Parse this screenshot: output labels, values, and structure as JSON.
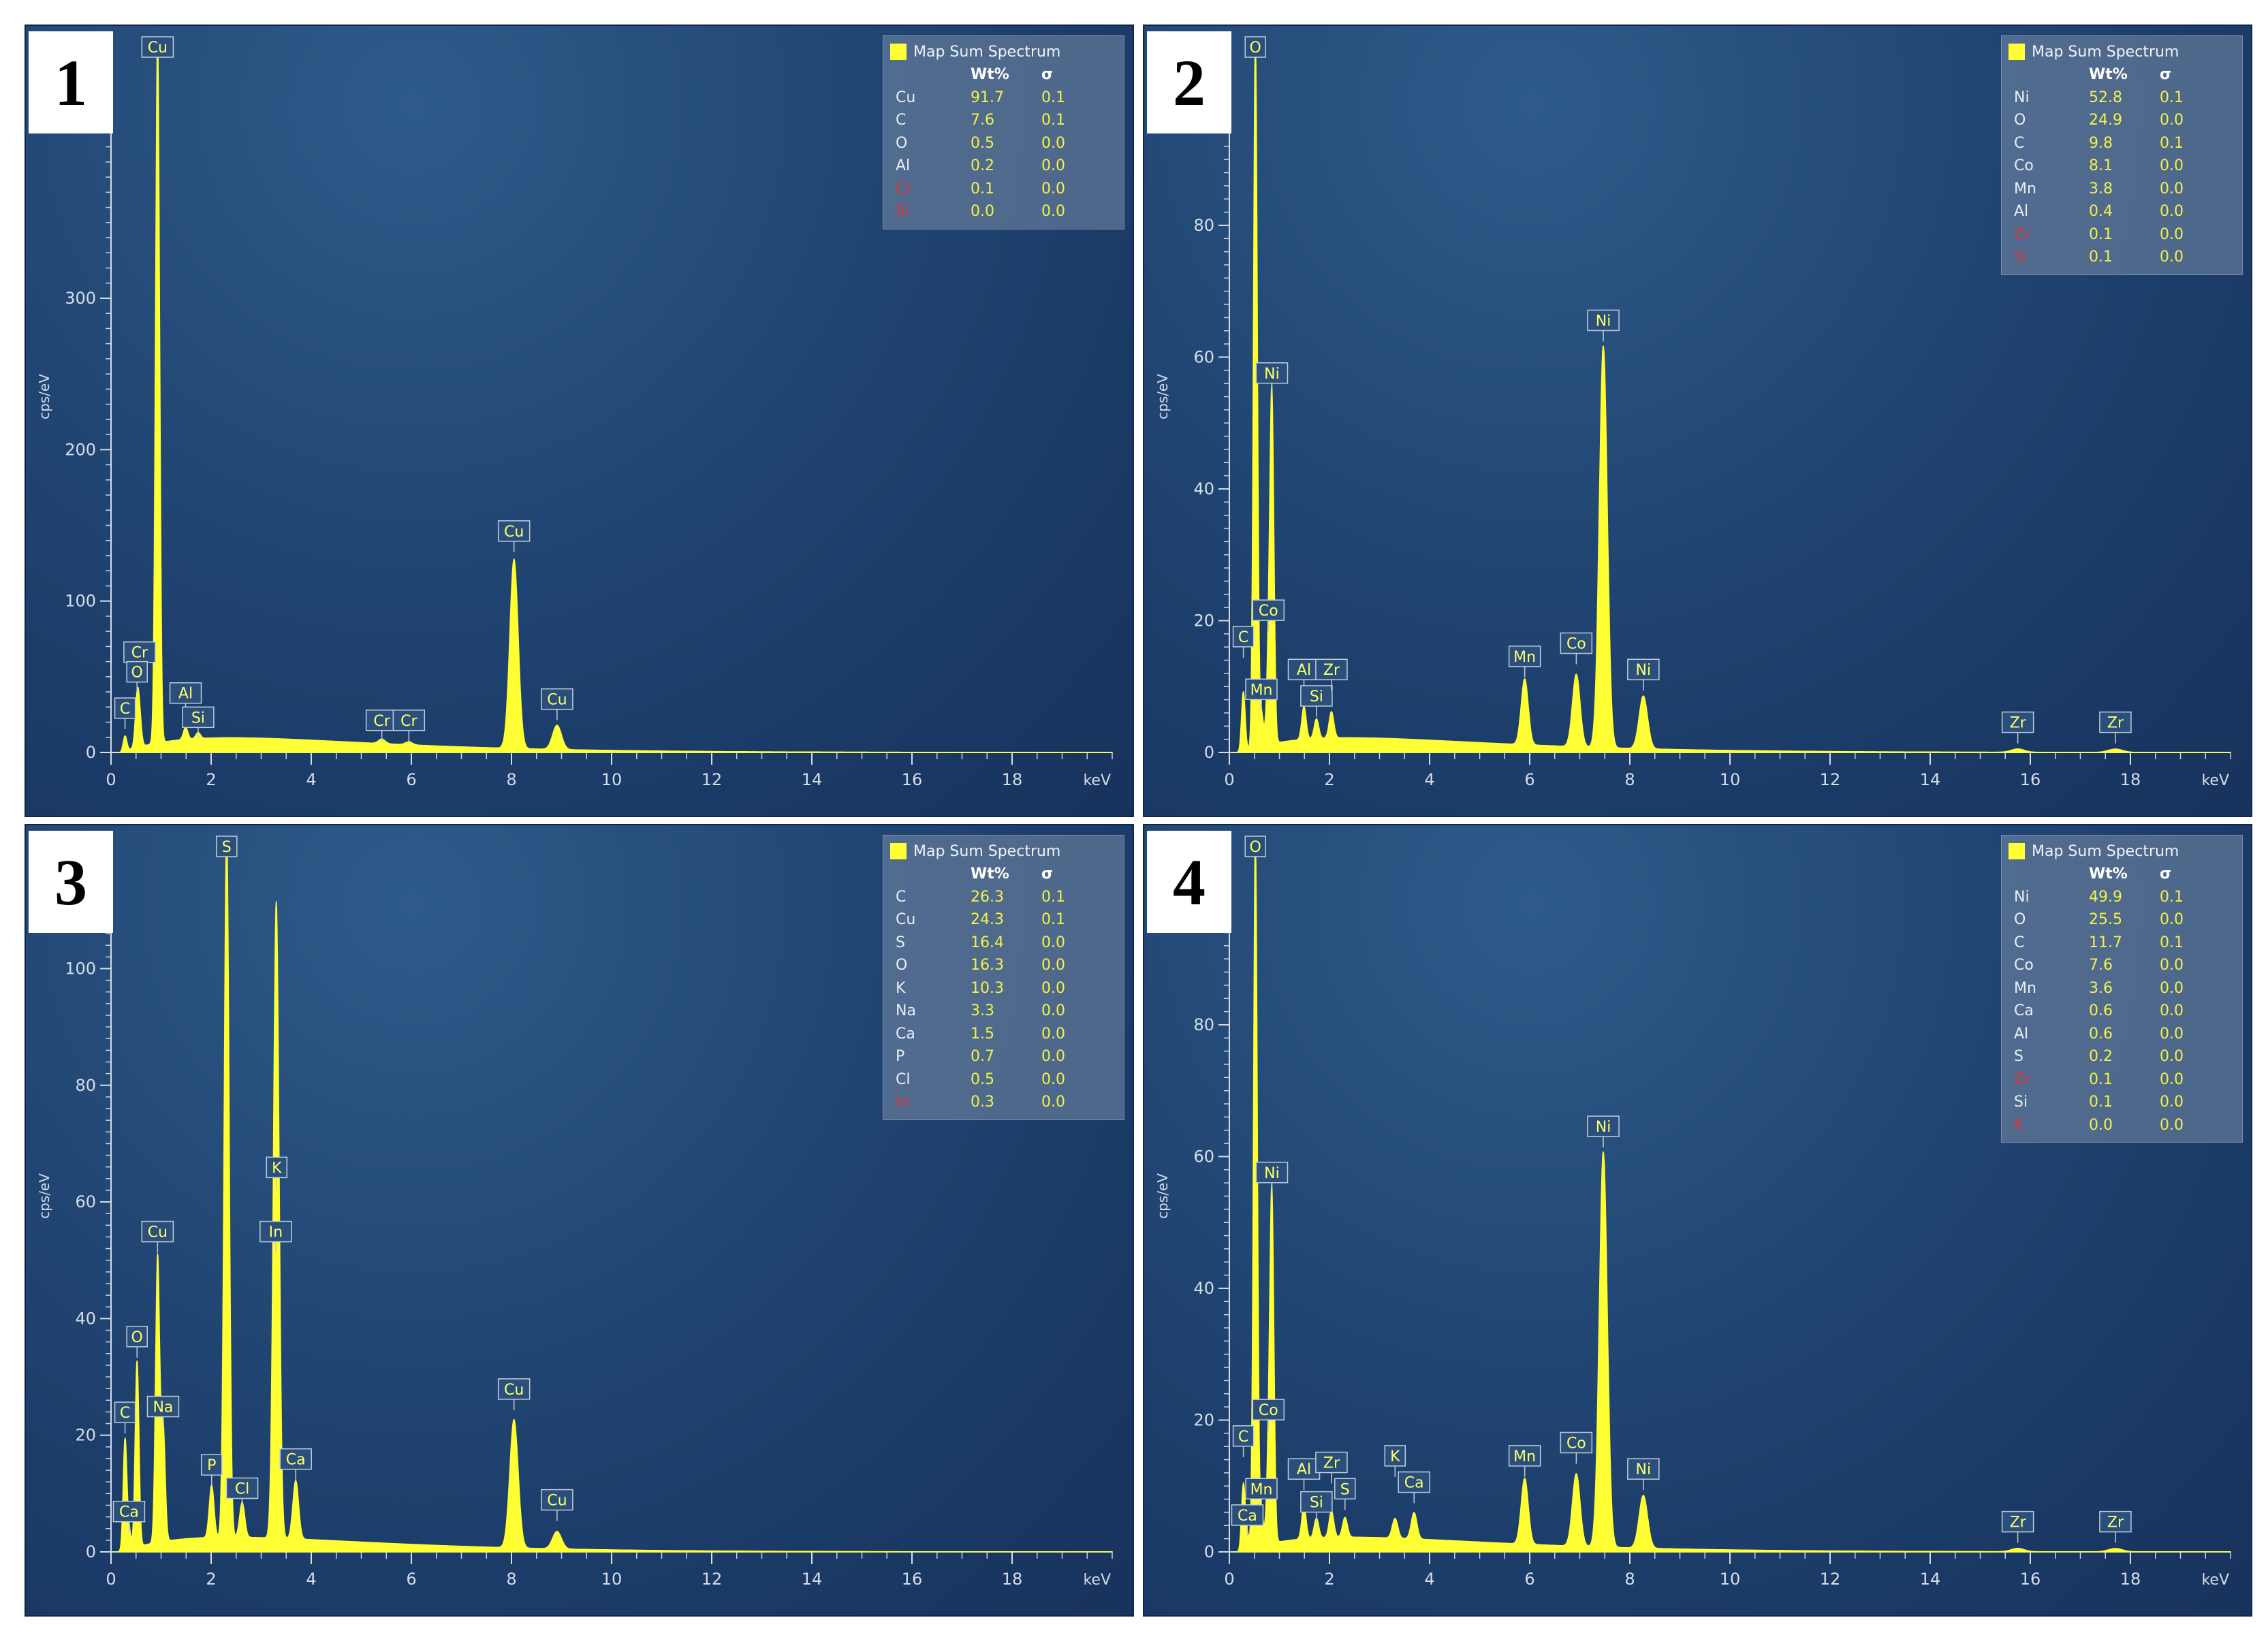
{
  "chart_data": [
    {
      "type": "area",
      "panel_label": "1",
      "xlabel": "keV",
      "ylabel": "cps/eV",
      "xlim": [
        0,
        20
      ],
      "ylim": [
        0,
        470
      ],
      "x_ticks": [
        0,
        2,
        4,
        6,
        8,
        10,
        12,
        14,
        16,
        18
      ],
      "y_ticks": [
        0,
        100,
        200,
        300
      ],
      "peaks": [
        {
          "x": 0.28,
          "y": 10
        },
        {
          "x": 0.52,
          "y": 30
        },
        {
          "x": 0.57,
          "y": 18
        },
        {
          "x": 0.93,
          "y": 470
        },
        {
          "x": 1.49,
          "y": 8
        },
        {
          "x": 1.74,
          "y": 4
        },
        {
          "x": 5.41,
          "y": 3
        },
        {
          "x": 5.95,
          "y": 2
        },
        {
          "x": 8.05,
          "y": 125
        },
        {
          "x": 8.91,
          "y": 16
        }
      ],
      "peak_labels": [
        {
          "x": 0.93,
          "y": 470,
          "text": "Cu"
        },
        {
          "x": 0.57,
          "y": 55,
          "text": "Cr"
        },
        {
          "x": 0.52,
          "y": 42,
          "text": "O"
        },
        {
          "x": 0.28,
          "y": 18,
          "text": "C"
        },
        {
          "x": 1.49,
          "y": 28,
          "text": "Al"
        },
        {
          "x": 1.74,
          "y": 12,
          "text": "Si"
        },
        {
          "x": 5.41,
          "y": 10,
          "text": "Cr"
        },
        {
          "x": 5.95,
          "y": 10,
          "text": "Cr"
        },
        {
          "x": 8.05,
          "y": 135,
          "text": "Cu"
        },
        {
          "x": 8.91,
          "y": 24,
          "text": "Cu"
        }
      ],
      "legend": {
        "title": "Map Sum Spectrum",
        "col_wt": "Wt%",
        "col_sigma": "σ",
        "rows": [
          {
            "element": "Cu",
            "wt": "91.7",
            "sigma": "0.1",
            "flag": false
          },
          {
            "element": "C",
            "wt": "7.6",
            "sigma": "0.1",
            "flag": false
          },
          {
            "element": "O",
            "wt": "0.5",
            "sigma": "0.0",
            "flag": false
          },
          {
            "element": "Al",
            "wt": "0.2",
            "sigma": "0.0",
            "flag": false
          },
          {
            "element": "Cr",
            "wt": "0.1",
            "sigma": "0.0",
            "flag": true
          },
          {
            "element": "Si",
            "wt": "0.0",
            "sigma": "0.0",
            "flag": true
          }
        ]
      }
    },
    {
      "type": "area",
      "panel_label": "2",
      "xlabel": "keV",
      "ylabel": "cps/eV",
      "xlim": [
        0,
        20
      ],
      "ylim": [
        0,
        108
      ],
      "x_ticks": [
        0,
        2,
        4,
        6,
        8,
        10,
        12,
        14,
        16,
        18
      ],
      "y_ticks": [
        0,
        20,
        40,
        60,
        80
      ],
      "peaks": [
        {
          "x": 0.28,
          "y": 9
        },
        {
          "x": 0.52,
          "y": 108
        },
        {
          "x": 0.64,
          "y": 5
        },
        {
          "x": 0.78,
          "y": 11
        },
        {
          "x": 0.85,
          "y": 52
        },
        {
          "x": 1.49,
          "y": 5
        },
        {
          "x": 1.74,
          "y": 3
        },
        {
          "x": 2.04,
          "y": 4
        },
        {
          "x": 5.9,
          "y": 10
        },
        {
          "x": 6.93,
          "y": 11
        },
        {
          "x": 7.47,
          "y": 61
        },
        {
          "x": 8.27,
          "y": 8
        },
        {
          "x": 15.75,
          "y": 0.5
        },
        {
          "x": 17.7,
          "y": 0.5
        }
      ],
      "peak_labels": [
        {
          "x": 0.52,
          "y": 108,
          "text": "O"
        },
        {
          "x": 0.85,
          "y": 55,
          "text": "Ni"
        },
        {
          "x": 0.78,
          "y": 19,
          "text": "Co"
        },
        {
          "x": 0.28,
          "y": 15,
          "text": "C"
        },
        {
          "x": 0.64,
          "y": 7,
          "text": "Mn"
        },
        {
          "x": 1.49,
          "y": 10,
          "text": "Al"
        },
        {
          "x": 1.74,
          "y": 6,
          "text": "Si"
        },
        {
          "x": 2.04,
          "y": 10,
          "text": "Zr"
        },
        {
          "x": 5.9,
          "y": 12,
          "text": "Mn"
        },
        {
          "x": 6.93,
          "y": 14,
          "text": "Co"
        },
        {
          "x": 7.47,
          "y": 63,
          "text": "Ni"
        },
        {
          "x": 8.27,
          "y": 10,
          "text": "Ni"
        },
        {
          "x": 15.75,
          "y": 2,
          "text": "Zr"
        },
        {
          "x": 17.7,
          "y": 2,
          "text": "Zr"
        }
      ],
      "legend": {
        "title": "Map Sum Spectrum",
        "col_wt": "Wt%",
        "col_sigma": "σ",
        "rows": [
          {
            "element": "Ni",
            "wt": "52.8",
            "sigma": "0.1",
            "flag": false
          },
          {
            "element": "O",
            "wt": "24.9",
            "sigma": "0.0",
            "flag": false
          },
          {
            "element": "C",
            "wt": "9.8",
            "sigma": "0.1",
            "flag": false
          },
          {
            "element": "Co",
            "wt": "8.1",
            "sigma": "0.0",
            "flag": false
          },
          {
            "element": "Mn",
            "wt": "3.8",
            "sigma": "0.0",
            "flag": false
          },
          {
            "element": "Al",
            "wt": "0.4",
            "sigma": "0.0",
            "flag": false
          },
          {
            "element": "Zr",
            "wt": "0.1",
            "sigma": "0.0",
            "flag": true
          },
          {
            "element": "Si",
            "wt": "0.1",
            "sigma": "0.0",
            "flag": true
          }
        ]
      }
    },
    {
      "type": "area",
      "panel_label": "3",
      "xlabel": "keV",
      "ylabel": "cps/eV",
      "xlim": [
        0,
        20
      ],
      "ylim": [
        0,
        122
      ],
      "x_ticks": [
        0,
        2,
        4,
        6,
        8,
        10,
        12,
        14,
        16,
        18
      ],
      "y_ticks": [
        0,
        20,
        40,
        60,
        80,
        100
      ],
      "peaks": [
        {
          "x": 0.28,
          "y": 19
        },
        {
          "x": 0.36,
          "y": 3
        },
        {
          "x": 0.52,
          "y": 32
        },
        {
          "x": 0.93,
          "y": 49
        },
        {
          "x": 1.04,
          "y": 20
        },
        {
          "x": 2.01,
          "y": 9
        },
        {
          "x": 2.31,
          "y": 122
        },
        {
          "x": 2.62,
          "y": 6
        },
        {
          "x": 3.31,
          "y": 61
        },
        {
          "x": 3.29,
          "y": 50
        },
        {
          "x": 3.69,
          "y": 10
        },
        {
          "x": 8.05,
          "y": 22
        },
        {
          "x": 8.91,
          "y": 3
        }
      ],
      "peak_labels": [
        {
          "x": 2.31,
          "y": 122,
          "text": "S"
        },
        {
          "x": 3.31,
          "y": 63,
          "text": "K"
        },
        {
          "x": 3.29,
          "y": 52,
          "text": "In"
        },
        {
          "x": 0.93,
          "y": 52,
          "text": "Cu"
        },
        {
          "x": 0.52,
          "y": 34,
          "text": "O"
        },
        {
          "x": 0.28,
          "y": 21,
          "text": "C"
        },
        {
          "x": 1.04,
          "y": 22,
          "text": "Na"
        },
        {
          "x": 0.36,
          "y": 4,
          "text": "Ca"
        },
        {
          "x": 2.01,
          "y": 12,
          "text": "P"
        },
        {
          "x": 2.62,
          "y": 8,
          "text": "Cl"
        },
        {
          "x": 3.69,
          "y": 13,
          "text": "Ca"
        },
        {
          "x": 8.05,
          "y": 25,
          "text": "Cu"
        },
        {
          "x": 8.91,
          "y": 6,
          "text": "Cu"
        }
      ],
      "legend": {
        "title": "Map Sum Spectrum",
        "col_wt": "Wt%",
        "col_sigma": "σ",
        "rows": [
          {
            "element": "C",
            "wt": "26.3",
            "sigma": "0.1",
            "flag": false
          },
          {
            "element": "Cu",
            "wt": "24.3",
            "sigma": "0.1",
            "flag": false
          },
          {
            "element": "S",
            "wt": "16.4",
            "sigma": "0.0",
            "flag": false
          },
          {
            "element": "O",
            "wt": "16.3",
            "sigma": "0.0",
            "flag": false
          },
          {
            "element": "K",
            "wt": "10.3",
            "sigma": "0.0",
            "flag": false
          },
          {
            "element": "Na",
            "wt": "3.3",
            "sigma": "0.0",
            "flag": false
          },
          {
            "element": "Ca",
            "wt": "1.5",
            "sigma": "0.0",
            "flag": false
          },
          {
            "element": "P",
            "wt": "0.7",
            "sigma": "0.0",
            "flag": false
          },
          {
            "element": "Cl",
            "wt": "0.5",
            "sigma": "0.0",
            "flag": false
          },
          {
            "element": "In",
            "wt": "0.3",
            "sigma": "0.0",
            "flag": true
          }
        ]
      }
    },
    {
      "type": "area",
      "panel_label": "4",
      "xlabel": "keV",
      "ylabel": "cps/eV",
      "xlim": [
        0,
        20
      ],
      "ylim": [
        0,
        108
      ],
      "x_ticks": [
        0,
        2,
        4,
        6,
        8,
        10,
        12,
        14,
        16,
        18
      ],
      "y_ticks": [
        0,
        20,
        40,
        60,
        80
      ],
      "peaks": [
        {
          "x": 0.28,
          "y": 10
        },
        {
          "x": 0.36,
          "y": 2
        },
        {
          "x": 0.52,
          "y": 108
        },
        {
          "x": 0.64,
          "y": 5
        },
        {
          "x": 0.78,
          "y": 11
        },
        {
          "x": 0.85,
          "y": 52
        },
        {
          "x": 1.49,
          "y": 5
        },
        {
          "x": 1.74,
          "y": 3
        },
        {
          "x": 2.04,
          "y": 4
        },
        {
          "x": 2.31,
          "y": 3
        },
        {
          "x": 3.31,
          "y": 3
        },
        {
          "x": 3.69,
          "y": 4
        },
        {
          "x": 5.9,
          "y": 10
        },
        {
          "x": 6.93,
          "y": 11
        },
        {
          "x": 7.47,
          "y": 60
        },
        {
          "x": 8.27,
          "y": 8
        },
        {
          "x": 15.75,
          "y": 0.5
        },
        {
          "x": 17.7,
          "y": 0.5
        }
      ],
      "peak_labels": [
        {
          "x": 0.52,
          "y": 108,
          "text": "O"
        },
        {
          "x": 0.85,
          "y": 55,
          "text": "Ni"
        },
        {
          "x": 0.78,
          "y": 19,
          "text": "Co"
        },
        {
          "x": 0.28,
          "y": 15,
          "text": "C"
        },
        {
          "x": 0.64,
          "y": 7,
          "text": "Mn"
        },
        {
          "x": 0.36,
          "y": 3,
          "text": "Ca"
        },
        {
          "x": 1.49,
          "y": 10,
          "text": "Al"
        },
        {
          "x": 1.74,
          "y": 5,
          "text": "Si"
        },
        {
          "x": 2.04,
          "y": 11,
          "text": "Zr"
        },
        {
          "x": 2.31,
          "y": 7,
          "text": "S"
        },
        {
          "x": 3.31,
          "y": 12,
          "text": "K"
        },
        {
          "x": 3.69,
          "y": 8,
          "text": "Ca"
        },
        {
          "x": 5.9,
          "y": 12,
          "text": "Mn"
        },
        {
          "x": 6.93,
          "y": 14,
          "text": "Co"
        },
        {
          "x": 7.47,
          "y": 62,
          "text": "Ni"
        },
        {
          "x": 8.27,
          "y": 10,
          "text": "Ni"
        },
        {
          "x": 15.75,
          "y": 2,
          "text": "Zr"
        },
        {
          "x": 17.7,
          "y": 2,
          "text": "Zr"
        }
      ],
      "legend": {
        "title": "Map Sum Spectrum",
        "col_wt": "Wt%",
        "col_sigma": "σ",
        "rows": [
          {
            "element": "Ni",
            "wt": "49.9",
            "sigma": "0.1",
            "flag": false
          },
          {
            "element": "O",
            "wt": "25.5",
            "sigma": "0.0",
            "flag": false
          },
          {
            "element": "C",
            "wt": "11.7",
            "sigma": "0.1",
            "flag": false
          },
          {
            "element": "Co",
            "wt": "7.6",
            "sigma": "0.0",
            "flag": false
          },
          {
            "element": "Mn",
            "wt": "3.6",
            "sigma": "0.0",
            "flag": false
          },
          {
            "element": "Ca",
            "wt": "0.6",
            "sigma": "0.0",
            "flag": false
          },
          {
            "element": "Al",
            "wt": "0.6",
            "sigma": "0.0",
            "flag": false
          },
          {
            "element": "S",
            "wt": "0.2",
            "sigma": "0.0",
            "flag": false
          },
          {
            "element": "Zr",
            "wt": "0.1",
            "sigma": "0.0",
            "flag": true
          },
          {
            "element": "Si",
            "wt": "0.1",
            "sigma": "0.0",
            "flag": false
          },
          {
            "element": "K",
            "wt": "0.0",
            "sigma": "0.0",
            "flag": true
          }
        ]
      }
    }
  ]
}
